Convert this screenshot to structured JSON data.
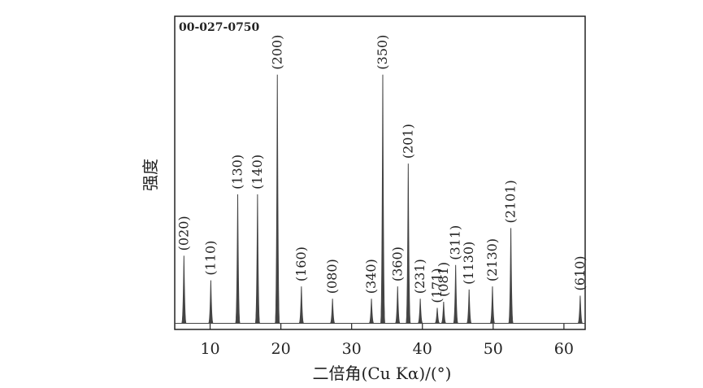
{
  "chart_data": {
    "type": "stick",
    "annotation": "00-027-0750",
    "xlabel": "二倍角(Cu Kα)/(°)",
    "ylabel": "强度",
    "x": [
      6.3,
      10.1,
      13.9,
      16.7,
      19.5,
      22.9,
      27.3,
      32.8,
      34.4,
      36.5,
      38.0,
      39.7,
      42.1,
      43.0,
      44.7,
      46.6,
      49.9,
      52.5,
      62.3
    ],
    "values": [
      22,
      14,
      42,
      42,
      81,
      12,
      8,
      8,
      81,
      12,
      52,
      8,
      5,
      7,
      19,
      11,
      12,
      31,
      9
    ],
    "peak_labels": [
      "(020)",
      "(110)",
      "(130)",
      "(140)",
      "(200)",
      "(160)",
      "(080)",
      "(340)",
      "(350)",
      "(360)",
      "(201)",
      "(231)",
      "(171)",
      "(081)",
      "(311)",
      "(1130)",
      "(2130)",
      "(2101)",
      "(610)"
    ],
    "color": "#444444",
    "xlim": [
      5,
      63
    ],
    "ylim": [
      -2,
      100
    ],
    "xticks": [
      10,
      20,
      30,
      40,
      50,
      60
    ]
  }
}
